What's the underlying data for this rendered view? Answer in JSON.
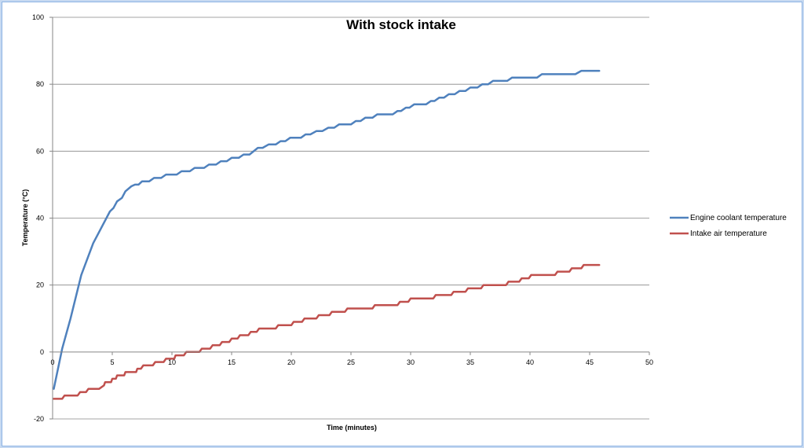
{
  "chart_data": {
    "type": "line",
    "title": "With stock intake",
    "xlabel": "Time (minutes)",
    "ylabel": "Temperature (°C)",
    "xlim": [
      0,
      50
    ],
    "ylim": [
      -20,
      100
    ],
    "xticks": [
      0,
      5,
      10,
      15,
      20,
      25,
      30,
      35,
      40,
      45,
      50
    ],
    "yticks": [
      -20,
      0,
      20,
      40,
      60,
      80,
      100
    ],
    "grid": "horizontal",
    "legend_position": "right",
    "series": [
      {
        "name": "Engine coolant temperature",
        "color": "#4f81bd",
        "points": [
          [
            0.1,
            -11
          ],
          [
            0.8,
            1
          ],
          [
            1.5,
            10
          ],
          [
            2.4,
            23
          ],
          [
            3.4,
            32.5
          ],
          [
            4.8,
            42
          ],
          [
            5.1,
            43
          ],
          [
            5.4,
            45
          ],
          [
            5.8,
            46
          ],
          [
            6.1,
            48
          ],
          [
            6.6,
            49.5
          ],
          [
            6.9,
            50
          ],
          [
            7.2,
            50
          ],
          [
            7.5,
            51
          ],
          [
            8.1,
            51
          ],
          [
            8.5,
            52
          ],
          [
            9.1,
            52
          ],
          [
            9.5,
            53
          ],
          [
            10.4,
            53
          ],
          [
            10.8,
            54
          ],
          [
            11.5,
            54
          ],
          [
            11.9,
            55
          ],
          [
            12.7,
            55
          ],
          [
            13.1,
            56
          ],
          [
            13.7,
            56
          ],
          [
            14.1,
            57
          ],
          [
            14.6,
            57
          ],
          [
            15.0,
            58
          ],
          [
            15.6,
            58
          ],
          [
            16.0,
            59
          ],
          [
            16.5,
            59
          ],
          [
            17.2,
            61
          ],
          [
            17.6,
            61
          ],
          [
            18.1,
            62
          ],
          [
            18.7,
            62
          ],
          [
            19.1,
            63
          ],
          [
            19.5,
            63
          ],
          [
            19.9,
            64
          ],
          [
            20.8,
            64
          ],
          [
            21.2,
            65
          ],
          [
            21.6,
            65
          ],
          [
            22.1,
            66
          ],
          [
            22.6,
            66
          ],
          [
            23.1,
            67
          ],
          [
            23.6,
            67
          ],
          [
            24.0,
            68
          ],
          [
            25.0,
            68
          ],
          [
            25.4,
            69
          ],
          [
            25.8,
            69
          ],
          [
            26.2,
            70
          ],
          [
            26.8,
            70
          ],
          [
            27.2,
            71
          ],
          [
            28.5,
            71
          ],
          [
            28.9,
            72
          ],
          [
            29.2,
            72
          ],
          [
            29.6,
            73
          ],
          [
            29.9,
            73
          ],
          [
            30.3,
            74
          ],
          [
            31.3,
            74
          ],
          [
            31.7,
            75
          ],
          [
            32.0,
            75
          ],
          [
            32.4,
            76
          ],
          [
            32.8,
            76
          ],
          [
            33.2,
            77
          ],
          [
            33.7,
            77
          ],
          [
            34.1,
            78
          ],
          [
            34.6,
            78
          ],
          [
            35.0,
            79
          ],
          [
            35.6,
            79
          ],
          [
            36.0,
            80
          ],
          [
            36.5,
            80
          ],
          [
            36.9,
            81
          ],
          [
            38.1,
            81
          ],
          [
            38.5,
            82
          ],
          [
            40.6,
            82
          ],
          [
            41.0,
            83
          ],
          [
            43.8,
            83
          ],
          [
            44.3,
            84
          ],
          [
            45.8,
            84
          ]
        ]
      },
      {
        "name": "Intake air temperature",
        "color": "#c0504d",
        "points": [
          [
            0.1,
            -14
          ],
          [
            0.8,
            -14
          ],
          [
            1.0,
            -13
          ],
          [
            2.1,
            -13
          ],
          [
            2.3,
            -12
          ],
          [
            2.8,
            -12
          ],
          [
            3.0,
            -11
          ],
          [
            3.9,
            -11
          ],
          [
            4.3,
            -10
          ],
          [
            4.4,
            -9
          ],
          [
            4.9,
            -9
          ],
          [
            5.0,
            -8
          ],
          [
            5.3,
            -8
          ],
          [
            5.4,
            -7
          ],
          [
            6.0,
            -7
          ],
          [
            6.1,
            -6
          ],
          [
            7.0,
            -6
          ],
          [
            7.1,
            -5
          ],
          [
            7.4,
            -5
          ],
          [
            7.6,
            -4
          ],
          [
            8.4,
            -4
          ],
          [
            8.6,
            -3
          ],
          [
            9.3,
            -3
          ],
          [
            9.5,
            -2
          ],
          [
            10.2,
            -2
          ],
          [
            10.3,
            -1
          ],
          [
            11.0,
            -1
          ],
          [
            11.2,
            0
          ],
          [
            12.3,
            0
          ],
          [
            12.5,
            1
          ],
          [
            13.2,
            1
          ],
          [
            13.4,
            2
          ],
          [
            14.0,
            2
          ],
          [
            14.2,
            3
          ],
          [
            14.8,
            3
          ],
          [
            15.0,
            4
          ],
          [
            15.5,
            4
          ],
          [
            15.7,
            5
          ],
          [
            16.4,
            5
          ],
          [
            16.6,
            6
          ],
          [
            17.1,
            6
          ],
          [
            17.3,
            7
          ],
          [
            18.7,
            7
          ],
          [
            18.9,
            8
          ],
          [
            20.0,
            8
          ],
          [
            20.2,
            9
          ],
          [
            20.9,
            9
          ],
          [
            21.1,
            10
          ],
          [
            22.1,
            10
          ],
          [
            22.3,
            11
          ],
          [
            23.2,
            11
          ],
          [
            23.4,
            12
          ],
          [
            24.5,
            12
          ],
          [
            24.7,
            13
          ],
          [
            26.8,
            13
          ],
          [
            27.0,
            14
          ],
          [
            28.9,
            14
          ],
          [
            29.1,
            15
          ],
          [
            29.8,
            15
          ],
          [
            30.0,
            16
          ],
          [
            31.9,
            16
          ],
          [
            32.1,
            17
          ],
          [
            33.4,
            17
          ],
          [
            33.6,
            18
          ],
          [
            34.6,
            18
          ],
          [
            34.8,
            19
          ],
          [
            35.9,
            19
          ],
          [
            36.1,
            20
          ],
          [
            38.0,
            20
          ],
          [
            38.2,
            21
          ],
          [
            39.1,
            21
          ],
          [
            39.3,
            22
          ],
          [
            39.9,
            22
          ],
          [
            40.1,
            23
          ],
          [
            42.1,
            23
          ],
          [
            42.3,
            24
          ],
          [
            43.3,
            24
          ],
          [
            43.5,
            25
          ],
          [
            44.3,
            25
          ],
          [
            44.5,
            26
          ],
          [
            45.8,
            26
          ]
        ]
      }
    ]
  }
}
